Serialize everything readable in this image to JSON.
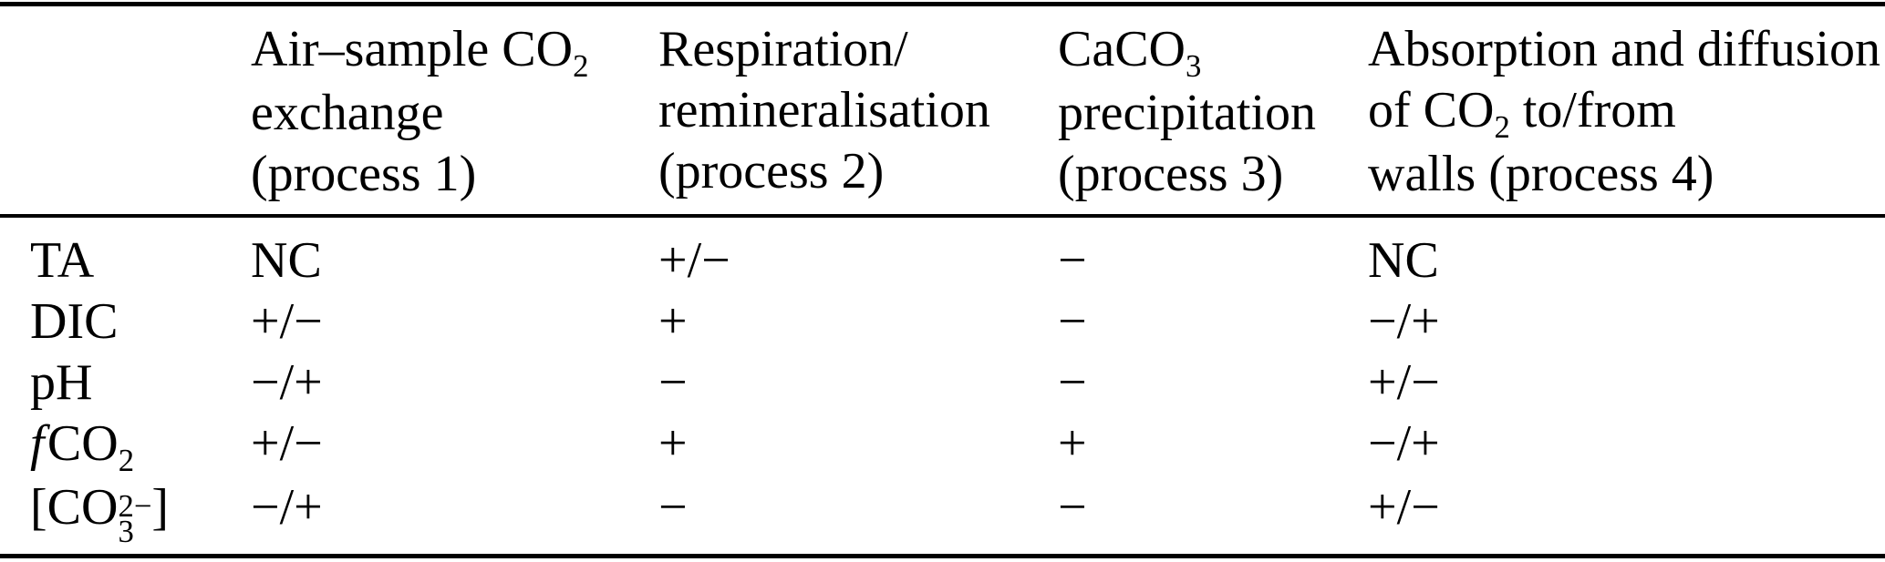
{
  "table": {
    "colors": {
      "text": "#000000",
      "rule": "#000000",
      "background": "#ffffff"
    },
    "columns": [
      {
        "name": "air-sample-co2-exchange",
        "lines": [
          [
            "Air–sample CO",
            {
              "t": "2",
              "s": "sub"
            }
          ],
          [
            "exchange"
          ],
          [
            "(process 1)"
          ]
        ]
      },
      {
        "name": "respiration-remineralisation",
        "lines": [
          [
            "Respiration/"
          ],
          [
            "remineralisation"
          ],
          [
            "(process 2)"
          ]
        ]
      },
      {
        "name": "caco3-precipitation",
        "lines": [
          [
            "CaCO",
            {
              "t": "3",
              "s": "sub"
            }
          ],
          [
            "precipitation"
          ],
          [
            "(process 3)"
          ]
        ]
      },
      {
        "name": "absorption-diffusion-walls",
        "lines": [
          [
            "Absorption and diffusion"
          ],
          [
            "of CO",
            {
              "t": "2",
              "s": "sub"
            },
            " to/from"
          ],
          [
            "walls (process 4)"
          ]
        ]
      }
    ],
    "rows": [
      {
        "name": "TA",
        "label": [
          "TA"
        ],
        "values": [
          "NC",
          "+/−",
          "−",
          "NC"
        ]
      },
      {
        "name": "DIC",
        "label": [
          "DIC"
        ],
        "values": [
          "+/−",
          "+",
          "−",
          "−/+"
        ]
      },
      {
        "name": "pH",
        "label": [
          "pH"
        ],
        "values": [
          "−/+",
          "−",
          "−",
          "+/−"
        ]
      },
      {
        "name": "fCO2",
        "label": [
          {
            "t": "f",
            "s": "i"
          },
          "CO",
          {
            "t": "2",
            "s": "sub"
          }
        ],
        "values": [
          "+/−",
          "+",
          "+",
          "−/+"
        ]
      },
      {
        "name": "carbonate-ion",
        "label": [
          "[CO",
          {
            "t": "3",
            "s": "subsup",
            "sup": "2−"
          },
          "]"
        ],
        "values": [
          "−/+",
          "−",
          "−",
          "+/−"
        ]
      }
    ]
  }
}
